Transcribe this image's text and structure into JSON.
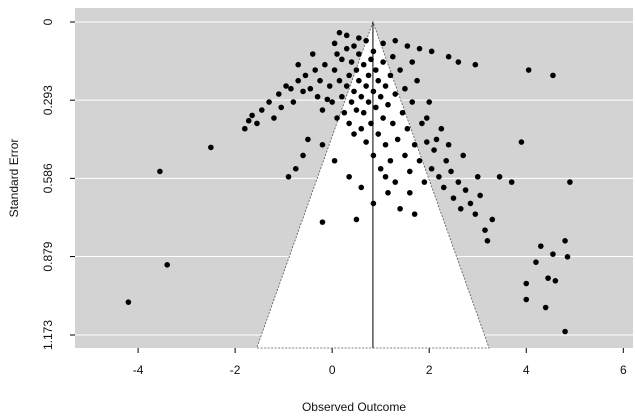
{
  "chart_data": {
    "type": "scatter",
    "title": "",
    "xlabel": "Observed Outcome",
    "ylabel": "Standard Error",
    "xlim": [
      -5.3,
      6.2
    ],
    "ylim": [
      0,
      1.173
    ],
    "y_reversed": true,
    "x_ticks": [
      -4,
      -2,
      0,
      2,
      4,
      6
    ],
    "x_tick_labels": [
      "-4",
      "-2",
      "0",
      "2",
      "4",
      "6"
    ],
    "y_ticks": [
      0,
      0.293,
      0.586,
      0.879,
      1.173
    ],
    "y_tick_labels": [
      "0",
      "0.293",
      "0.586",
      "0.879",
      "1.173"
    ],
    "grid": "horizontal",
    "background_color": "#d3d3d3",
    "funnel": {
      "center": 0.84,
      "z": 1.96,
      "fill": "#ffffff"
    },
    "point_color": "#000000",
    "points": [
      [
        -4.2,
        1.05
      ],
      [
        -3.4,
        0.91
      ],
      [
        -3.55,
        0.56
      ],
      [
        -2.5,
        0.47
      ],
      [
        -1.8,
        0.4
      ],
      [
        -1.72,
        0.37
      ],
      [
        -1.65,
        0.35
      ],
      [
        -1.55,
        0.38
      ],
      [
        -1.45,
        0.33
      ],
      [
        -1.3,
        0.3
      ],
      [
        -1.2,
        0.36
      ],
      [
        -1.1,
        0.27
      ],
      [
        -0.95,
        0.24
      ],
      [
        -0.85,
        0.25
      ],
      [
        -0.8,
        0.3
      ],
      [
        -1.05,
        0.32
      ],
      [
        -0.7,
        0.22
      ],
      [
        -0.6,
        0.26
      ],
      [
        -0.55,
        0.2
      ],
      [
        -0.45,
        0.25
      ],
      [
        -0.35,
        0.18
      ],
      [
        -0.3,
        0.28
      ],
      [
        -0.25,
        0.22
      ],
      [
        -0.2,
        0.33
      ],
      [
        -0.15,
        0.16
      ],
      [
        -0.1,
        0.29
      ],
      [
        -0.05,
        0.24
      ],
      [
        0.0,
        0.3
      ],
      [
        0.05,
        0.18
      ],
      [
        0.1,
        0.36
      ],
      [
        0.1,
        0.12
      ],
      [
        0.15,
        0.22
      ],
      [
        0.2,
        0.28
      ],
      [
        0.2,
        0.14
      ],
      [
        0.25,
        0.34
      ],
      [
        0.3,
        0.1
      ],
      [
        0.3,
        0.24
      ],
      [
        0.35,
        0.38
      ],
      [
        0.35,
        0.2
      ],
      [
        0.4,
        0.3
      ],
      [
        0.4,
        0.15
      ],
      [
        0.45,
        0.26
      ],
      [
        0.45,
        0.42
      ],
      [
        0.5,
        0.18
      ],
      [
        0.5,
        0.33
      ],
      [
        0.55,
        0.22
      ],
      [
        0.55,
        0.12
      ],
      [
        0.6,
        0.28
      ],
      [
        0.6,
        0.4
      ],
      [
        0.65,
        0.16
      ],
      [
        0.65,
        0.34
      ],
      [
        0.7,
        0.24
      ],
      [
        0.7,
        0.45
      ],
      [
        0.75,
        0.2
      ],
      [
        0.75,
        0.3
      ],
      [
        0.8,
        0.14
      ],
      [
        0.8,
        0.38
      ],
      [
        0.85,
        0.26
      ],
      [
        0.85,
        0.5
      ],
      [
        0.9,
        0.18
      ],
      [
        0.9,
        0.32
      ],
      [
        0.95,
        0.42
      ],
      [
        0.95,
        0.22
      ],
      [
        1.0,
        0.28
      ],
      [
        1.0,
        0.55
      ],
      [
        1.05,
        0.15
      ],
      [
        1.05,
        0.36
      ],
      [
        1.1,
        0.24
      ],
      [
        1.1,
        0.46
      ],
      [
        1.15,
        0.31
      ],
      [
        1.2,
        0.2
      ],
      [
        1.2,
        0.52
      ],
      [
        1.25,
        0.38
      ],
      [
        1.3,
        0.27
      ],
      [
        1.3,
        0.6
      ],
      [
        1.35,
        0.44
      ],
      [
        1.4,
        0.18
      ],
      [
        1.45,
        0.34
      ],
      [
        1.5,
        0.5
      ],
      [
        1.5,
        0.25
      ],
      [
        1.55,
        0.4
      ],
      [
        1.6,
        0.56
      ],
      [
        1.65,
        0.3
      ],
      [
        1.7,
        0.46
      ],
      [
        1.75,
        0.22
      ],
      [
        1.8,
        0.52
      ],
      [
        1.85,
        0.38
      ],
      [
        1.9,
        0.6
      ],
      [
        1.95,
        0.45
      ],
      [
        2.0,
        0.3
      ],
      [
        2.05,
        0.55
      ],
      [
        2.1,
        0.48
      ],
      [
        2.2,
        0.58
      ],
      [
        2.25,
        0.4
      ],
      [
        2.3,
        0.62
      ],
      [
        2.35,
        0.52
      ],
      [
        2.45,
        0.56
      ],
      [
        2.5,
        0.66
      ],
      [
        2.6,
        0.6
      ],
      [
        2.65,
        0.7
      ],
      [
        2.75,
        0.63
      ],
      [
        2.85,
        0.68
      ],
      [
        2.95,
        0.72
      ],
      [
        3.05,
        0.65
      ],
      [
        3.15,
        0.78
      ],
      [
        3.3,
        0.74
      ],
      [
        2.4,
        0.13
      ],
      [
        2.6,
        0.15
      ],
      [
        2.95,
        0.16
      ],
      [
        3.0,
        0.58
      ],
      [
        3.2,
        0.82
      ],
      [
        3.45,
        0.58
      ],
      [
        3.7,
        0.6
      ],
      [
        4.05,
        0.18
      ],
      [
        4.55,
        0.2
      ],
      [
        4.0,
        0.98
      ],
      [
        4.45,
        0.96
      ],
      [
        4.55,
        0.87
      ],
      [
        4.8,
        0.82
      ],
      [
        4.85,
        0.88
      ],
      [
        4.3,
        0.84
      ],
      [
        4.0,
        1.04
      ],
      [
        4.4,
        1.07
      ],
      [
        4.6,
        0.97
      ],
      [
        4.8,
        1.16
      ],
      [
        4.9,
        0.6
      ],
      [
        3.9,
        0.45
      ],
      [
        4.2,
        0.9
      ],
      [
        0.15,
        0.04
      ],
      [
        0.3,
        0.05
      ],
      [
        0.55,
        0.06
      ],
      [
        0.7,
        0.07
      ],
      [
        1.05,
        0.08
      ],
      [
        1.3,
        0.07
      ],
      [
        1.55,
        0.09
      ],
      [
        1.8,
        0.1
      ],
      [
        2.05,
        0.11
      ],
      [
        0.05,
        0.08
      ],
      [
        0.45,
        0.09
      ],
      [
        0.85,
        0.11
      ],
      [
        1.25,
        0.13
      ],
      [
        1.65,
        0.15
      ],
      [
        -0.4,
        0.12
      ],
      [
        -0.7,
        0.16
      ],
      [
        0.6,
        0.62
      ],
      [
        0.85,
        0.68
      ],
      [
        1.15,
        0.64
      ],
      [
        1.4,
        0.7
      ],
      [
        0.35,
        0.58
      ],
      [
        -0.2,
        0.75
      ],
      [
        0.5,
        0.74
      ],
      [
        1.7,
        0.72
      ],
      [
        -0.6,
        0.5
      ],
      [
        -0.9,
        0.58
      ],
      [
        -0.75,
        0.55
      ],
      [
        -0.5,
        0.44
      ],
      [
        -0.2,
        0.46
      ],
      [
        0.05,
        0.52
      ],
      [
        1.95,
        0.36
      ],
      [
        2.15,
        0.44
      ],
      [
        1.1,
        0.58
      ],
      [
        1.6,
        0.64
      ],
      [
        2.4,
        0.46
      ],
      [
        2.7,
        0.5
      ]
    ]
  }
}
